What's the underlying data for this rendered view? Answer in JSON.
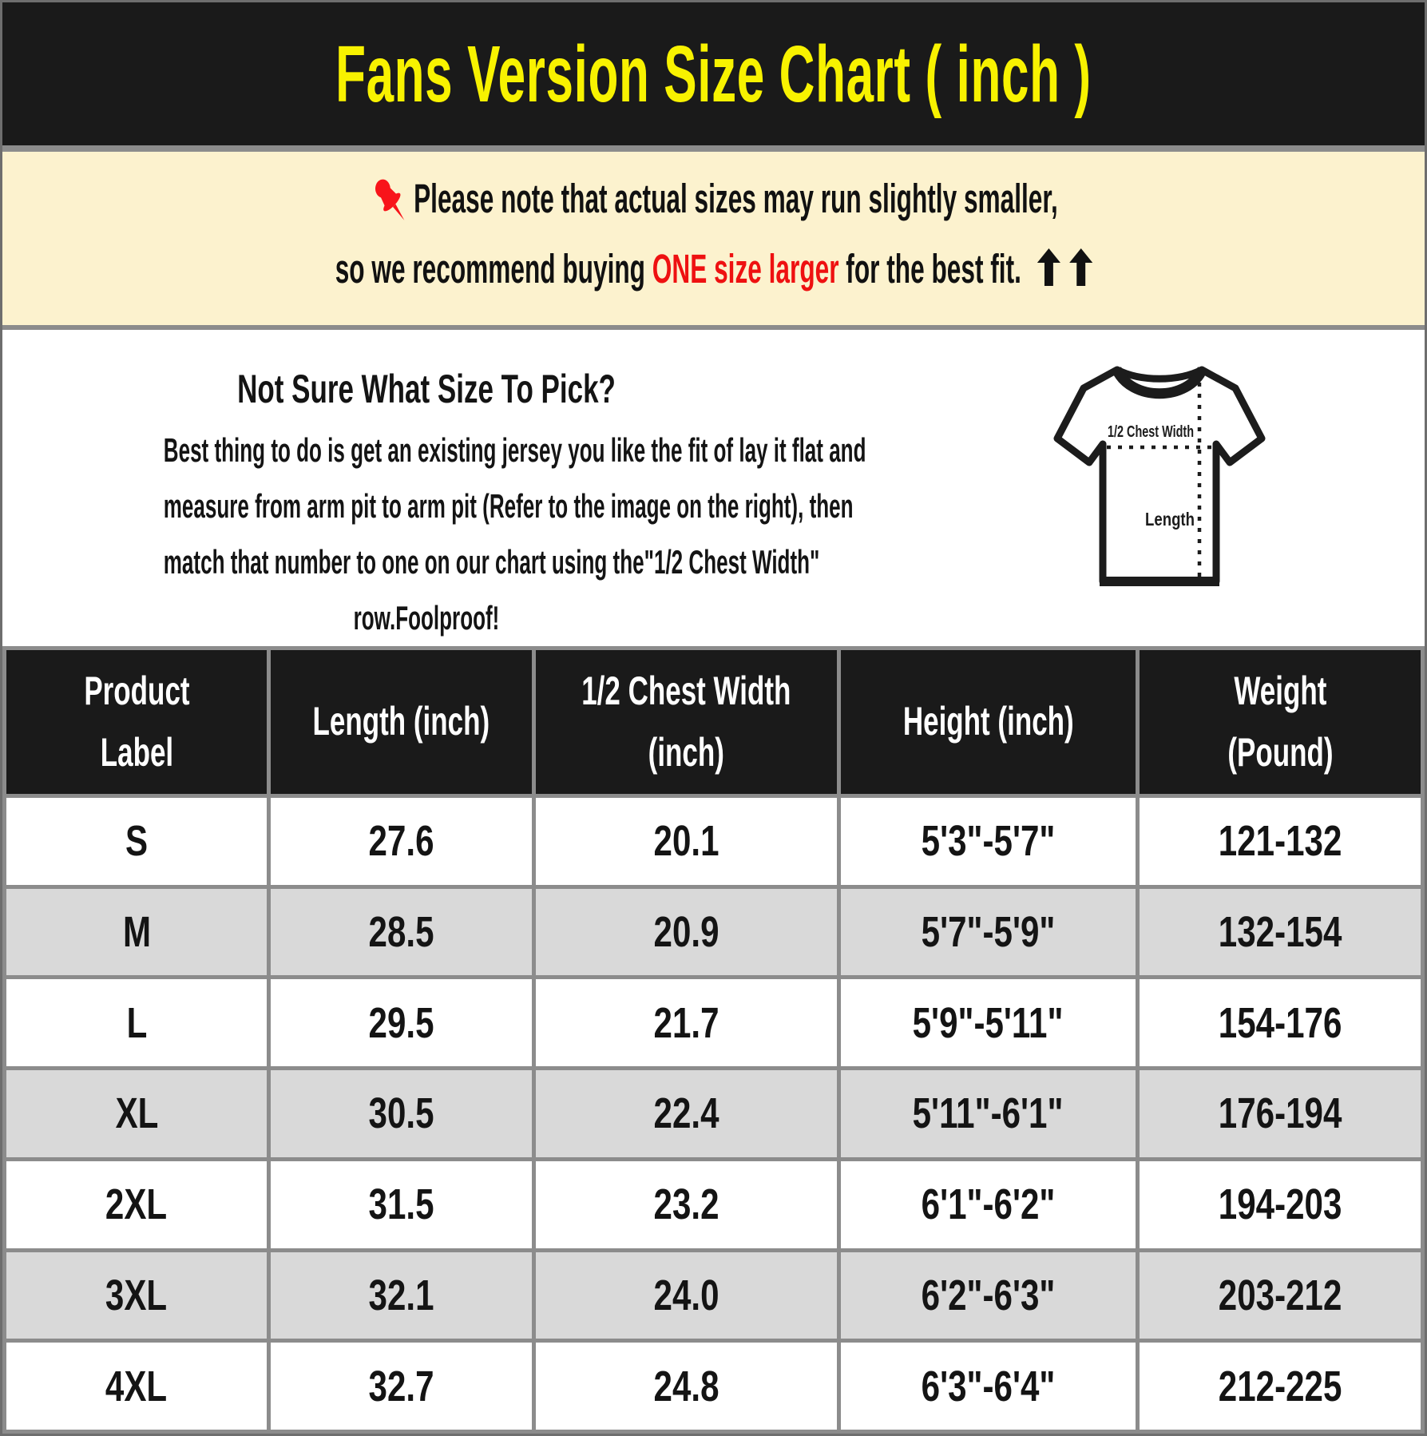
{
  "header": {
    "title": "Fans Version Size Chart ( inch )"
  },
  "note": {
    "pushpin_icon": "red-pushpin",
    "line1": "Please note that actual sizes may run slightly smaller,",
    "line2_prefix": "so we recommend buying ",
    "line2_red": "ONE size larger",
    "line2_suffix": " for the best fit. ",
    "arrows_icon": "double-up-arrow"
  },
  "size_help": {
    "heading": "Not Sure What Size To Pick?",
    "body": "Best thing to do is get an existing jersey you like the fit of lay it flat and\nmeasure from arm pit to arm pit (Refer to the image on the right), then\nmatch that number to one on our chart using the\"1/2 Chest Width\"\nrow.Foolproof!",
    "diagram": {
      "tshirt_icon": "tshirt-measurement-diagram",
      "chest_label": "1/2 Chest Width",
      "length_label": "Length"
    }
  },
  "table": {
    "headers": [
      "Product\nLabel",
      "Length (inch)",
      "1/2 Chest Width\n(inch)",
      "Height (inch)",
      "Weight\n(Pound)"
    ],
    "rows": [
      [
        "S",
        "27.6",
        "20.1",
        "5'3\"-5'7\"",
        "121-132"
      ],
      [
        "M",
        "28.5",
        "20.9",
        "5'7\"-5'9\"",
        "132-154"
      ],
      [
        "L",
        "29.5",
        "21.7",
        "5'9\"-5'11\"",
        "154-176"
      ],
      [
        "XL",
        "30.5",
        "22.4",
        "5'11\"-6'1\"",
        "176-194"
      ],
      [
        "2XL",
        "31.5",
        "23.2",
        "6'1\"-6'2\"",
        "194-203"
      ],
      [
        "3XL",
        "32.1",
        "24.0",
        "6'2\"-6'3\"",
        "203-212"
      ],
      [
        "4XL",
        "32.7",
        "24.8",
        "6'3\"-6'4\"",
        "212-225"
      ]
    ]
  },
  "chart_data": {
    "type": "table",
    "title": "Fans Version Size Chart ( inch )",
    "columns": [
      "Product Label",
      "Length (inch)",
      "1/2 Chest Width (inch)",
      "Height (inch)",
      "Weight (Pound)"
    ],
    "rows": [
      [
        "S",
        27.6,
        20.1,
        "5'3\"-5'7\"",
        "121-132"
      ],
      [
        "M",
        28.5,
        20.9,
        "5'7\"-5'9\"",
        "132-154"
      ],
      [
        "L",
        29.5,
        21.7,
        "5'9\"-5'11\"",
        "154-176"
      ],
      [
        "XL",
        30.5,
        22.4,
        "5'11\"-6'1\"",
        "176-194"
      ],
      [
        "2XL",
        31.5,
        23.2,
        "6'1\"-6'2\"",
        "194-203"
      ],
      [
        "3XL",
        32.1,
        24.0,
        "6'2\"-6'3\"",
        "203-212"
      ],
      [
        "4XL",
        32.7,
        24.8,
        "6'3\"-6'4\"",
        "212-225"
      ]
    ]
  },
  "colors": {
    "title-yellow": "#F8F200",
    "banner-bg": "#1A1A1A",
    "note-bg": "#FCF2CE",
    "accent-red": "#EE1111",
    "pushpin-red": "#F8141A",
    "row-alt": "#D9D9D9",
    "table-border": "#8C8C8C",
    "text": "#141414"
  }
}
